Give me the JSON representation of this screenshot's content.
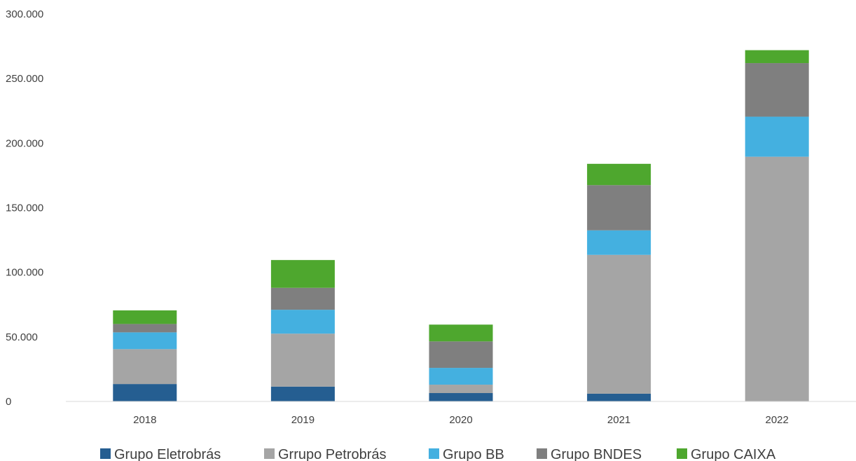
{
  "chart_data": {
    "type": "bar",
    "stacked": true,
    "categories": [
      "2018",
      "2019",
      "2020",
      "2021",
      "2022"
    ],
    "series": [
      {
        "name": "Grupo Eletrobrás",
        "color": "#255E91",
        "values": [
          13500,
          11500,
          6500,
          6000,
          0
        ]
      },
      {
        "name": "Grrupo Petrobrás",
        "color": "#A5A5A5",
        "values": [
          27000,
          41000,
          6500,
          107500,
          189500
        ]
      },
      {
        "name": "Grupo BB",
        "color": "#44B0E0",
        "values": [
          13000,
          18500,
          13000,
          19000,
          31000
        ]
      },
      {
        "name": "Grupo BNDES",
        "color": "#7F7F7F",
        "values": [
          6500,
          17000,
          20500,
          35000,
          41500
        ]
      },
      {
        "name": "Grupo CAIXA",
        "color": "#4EA72E",
        "values": [
          10500,
          21500,
          13000,
          16500,
          10000
        ]
      }
    ],
    "y_ticks": [
      "0",
      "50.000",
      "100.000",
      "150.000",
      "200.000",
      "250.000",
      "300.000"
    ],
    "ylim": [
      0,
      300000
    ],
    "grid": false,
    "legend_position": "bottom",
    "title": "",
    "xlabel": "",
    "ylabel": ""
  }
}
